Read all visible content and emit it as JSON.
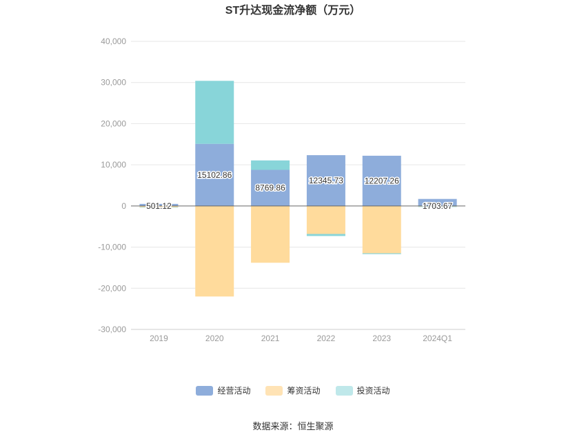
{
  "chart_data": {
    "type": "bar",
    "stacked": true,
    "title": "ST升达现金流净额（万元）",
    "categories": [
      "2019",
      "2020",
      "2021",
      "2022",
      "2023",
      "2024Q1"
    ],
    "ylim": [
      -30000,
      40000
    ],
    "yticks": [
      40000,
      30000,
      20000,
      10000,
      0,
      -10000,
      -20000,
      -30000
    ],
    "ytick_labels": [
      "40,000",
      "30,000",
      "20,000",
      "10,000",
      "0",
      "-10,000",
      "-20,000",
      "-30,000"
    ],
    "grid": true,
    "legend_position": "bottom",
    "series": [
      {
        "name": "经营活动",
        "color": "#8eaddb",
        "values": [
          501.12,
          15102.86,
          8769.86,
          12345.73,
          12207.26,
          1703.67
        ],
        "labels": [
          "501.12",
          "15102.86",
          "8769.86",
          "12345.73",
          "12207.26",
          "1703.67"
        ]
      },
      {
        "name": "筹资活动",
        "color": "#ffdb9c",
        "values": [
          -300,
          -22000,
          -13800,
          -6800,
          -11500,
          -150
        ]
      },
      {
        "name": "投资活动",
        "color": "#88d5d9",
        "values": [
          -100,
          15300,
          2300,
          -500,
          -200,
          -100
        ]
      }
    ]
  },
  "legend": {
    "items": [
      {
        "label": "经营活动",
        "color": "#8eaddb"
      },
      {
        "label": "筹资活动",
        "color": "#ffe3b5"
      },
      {
        "label": "投资活动",
        "color": "#bfe8ea"
      }
    ]
  },
  "source": "数据来源：恒生聚源"
}
